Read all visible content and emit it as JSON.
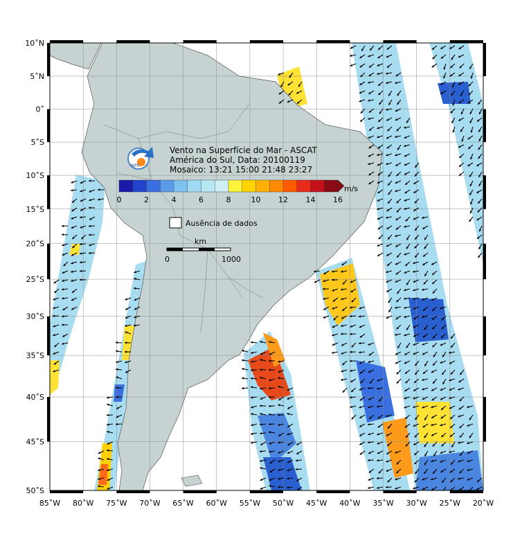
{
  "title": {
    "line1": "Vento na Superfície do Mar - ASCAT",
    "line2": "América do Sul, Data: 20100119",
    "line3": "Mosaico: 13:21 15:00 21:48 23:27"
  },
  "logo": {
    "text": "INPE"
  },
  "colorbar": {
    "unit": "m/s",
    "ticks": [
      "0",
      "2",
      "4",
      "6",
      "8",
      "10",
      "12",
      "14",
      "16"
    ],
    "colors": [
      "#1a1aa8",
      "#2244cc",
      "#3a6fe0",
      "#5a9be8",
      "#7fc1ee",
      "#9fd9f2",
      "#b8e8f4",
      "#cdeff5",
      "#fff23a",
      "#ffd400",
      "#ffb000",
      "#ff8a00",
      "#ff5a00",
      "#e82a1a",
      "#c4101a",
      "#8a0a14"
    ]
  },
  "legend": {
    "no_data": "Ausência de dados"
  },
  "scale": {
    "unit": "km",
    "start": "0",
    "end": "1000"
  },
  "axes": {
    "lat_labels": [
      "10˚N",
      "5˚N",
      "0˚",
      "5˚S",
      "10˚S",
      "15˚S",
      "20˚S",
      "25˚S",
      "30˚S",
      "35˚S",
      "40˚S",
      "45˚S",
      "50˚S"
    ],
    "lon_labels": [
      "85˚W",
      "80˚W",
      "75˚W",
      "70˚W",
      "65˚W",
      "60˚W",
      "55˚W",
      "50˚W",
      "45˚W",
      "40˚W",
      "35˚W",
      "30˚W",
      "25˚W",
      "20˚W"
    ],
    "lat_values": [
      10,
      5,
      0,
      -5,
      -10,
      -15,
      -20,
      -25,
      -30,
      -35,
      -40,
      -45,
      -50
    ],
    "lon_values": [
      -85,
      -80,
      -75,
      -70,
      -65,
      -60,
      -55,
      -50,
      -45,
      -40,
      -35,
      -30,
      -25,
      -20
    ]
  },
  "colors": {
    "land": "#c6d3d2",
    "ocean": "#ffffff",
    "swath_light": "#a8dcf0",
    "swath_mid": "#6fb0e6",
    "swath_dark": "#2a5fd0",
    "warm_yellow": "#ffe233",
    "warm_orange": "#ff8c1a",
    "warm_red": "#e63a1a"
  }
}
